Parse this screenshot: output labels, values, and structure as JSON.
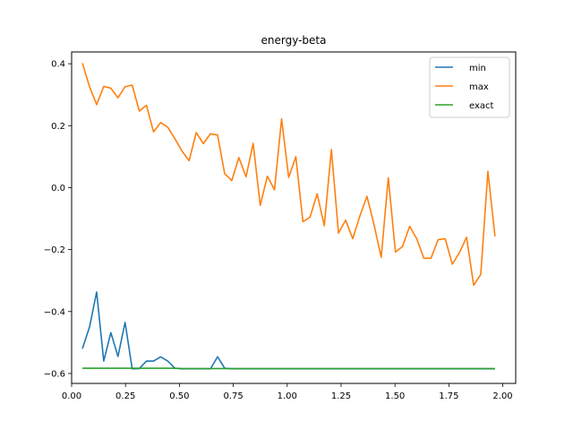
{
  "chart_data": {
    "type": "line",
    "title": "energy-beta",
    "xlabel": "",
    "ylabel": "",
    "xlim": [
      -0.0,
      2.06
    ],
    "ylim": [
      -0.632,
      0.438
    ],
    "xticks": [
      0.0,
      0.25,
      0.5,
      0.75,
      1.0,
      1.25,
      1.5,
      1.75,
      2.0
    ],
    "xtick_labels": [
      "0.00",
      "0.25",
      "0.50",
      "0.75",
      "1.00",
      "1.25",
      "1.50",
      "1.75",
      "2.00"
    ],
    "yticks": [
      -0.6,
      -0.4,
      -0.2,
      0.0,
      0.2,
      0.4
    ],
    "ytick_labels": [
      "−0.6",
      "−0.4",
      "−0.2",
      "0.0",
      "0.2",
      "0.4"
    ],
    "grid": false,
    "legend_position": "top-right",
    "x": [
      0.05,
      0.083,
      0.116,
      0.149,
      0.182,
      0.215,
      0.248,
      0.281,
      0.314,
      0.347,
      0.38,
      0.413,
      0.446,
      0.479,
      0.512,
      0.545,
      0.578,
      0.611,
      0.644,
      0.677,
      0.71,
      0.743,
      0.776,
      0.809,
      0.842,
      0.875,
      0.908,
      0.941,
      0.974,
      1.007,
      1.04,
      1.073,
      1.106,
      1.139,
      1.172,
      1.205,
      1.238,
      1.271,
      1.304,
      1.337,
      1.37,
      1.403,
      1.436,
      1.469,
      1.502,
      1.535,
      1.568,
      1.601,
      1.634,
      1.667,
      1.7,
      1.733,
      1.766,
      1.799,
      1.832,
      1.865,
      1.898,
      1.931,
      1.964
    ],
    "series": [
      {
        "name": "min",
        "color": "#1f77b4",
        "values": [
          -0.52,
          -0.45,
          -0.337,
          -0.56,
          -0.468,
          -0.545,
          -0.435,
          -0.585,
          -0.584,
          -0.56,
          -0.56,
          -0.546,
          -0.56,
          -0.583,
          -0.585,
          -0.585,
          -0.585,
          -0.585,
          -0.585,
          -0.546,
          -0.583,
          -0.585,
          -0.585,
          -0.585,
          -0.585,
          -0.585,
          -0.585,
          -0.585,
          -0.585,
          -0.585,
          -0.585,
          -0.585,
          -0.585,
          -0.585,
          -0.585,
          -0.585,
          -0.585,
          -0.585,
          -0.585,
          -0.585,
          -0.585,
          -0.585,
          -0.585,
          -0.585,
          -0.585,
          -0.585,
          -0.585,
          -0.585,
          -0.585,
          -0.585,
          -0.585,
          -0.585,
          -0.585,
          -0.585,
          -0.585,
          -0.585,
          -0.585,
          -0.585,
          -0.585
        ]
      },
      {
        "name": "max",
        "color": "#ff7f0e",
        "values": [
          0.402,
          0.326,
          0.268,
          0.327,
          0.321,
          0.29,
          0.326,
          0.331,
          0.247,
          0.266,
          0.18,
          0.21,
          0.195,
          0.158,
          0.118,
          0.087,
          0.178,
          0.142,
          0.174,
          0.17,
          0.045,
          0.023,
          0.097,
          0.035,
          0.143,
          -0.057,
          0.037,
          -0.007,
          0.222,
          0.033,
          0.1,
          -0.11,
          -0.095,
          -0.02,
          -0.123,
          0.123,
          -0.147,
          -0.105,
          -0.165,
          -0.092,
          -0.028,
          -0.12,
          -0.225,
          0.032,
          -0.208,
          -0.19,
          -0.125,
          -0.165,
          -0.228,
          -0.228,
          -0.168,
          -0.165,
          -0.247,
          -0.21,
          -0.16,
          -0.315,
          -0.28,
          0.052,
          -0.157
        ]
      },
      {
        "name": "exact",
        "color": "#2ca02c",
        "values": [
          -0.583,
          -0.583,
          -0.583,
          -0.583,
          -0.583,
          -0.583,
          -0.583,
          -0.583,
          -0.583,
          -0.583,
          -0.583,
          -0.583,
          -0.583,
          -0.583,
          -0.584,
          -0.584,
          -0.584,
          -0.584,
          -0.584,
          -0.584,
          -0.584,
          -0.584,
          -0.584,
          -0.584,
          -0.584,
          -0.584,
          -0.584,
          -0.584,
          -0.584,
          -0.584,
          -0.584,
          -0.584,
          -0.584,
          -0.584,
          -0.584,
          -0.584,
          -0.584,
          -0.584,
          -0.584,
          -0.584,
          -0.584,
          -0.584,
          -0.584,
          -0.584,
          -0.584,
          -0.584,
          -0.584,
          -0.584,
          -0.584,
          -0.584,
          -0.584,
          -0.584,
          -0.584,
          -0.584,
          -0.584,
          -0.584,
          -0.584,
          -0.584,
          -0.584
        ]
      }
    ]
  }
}
